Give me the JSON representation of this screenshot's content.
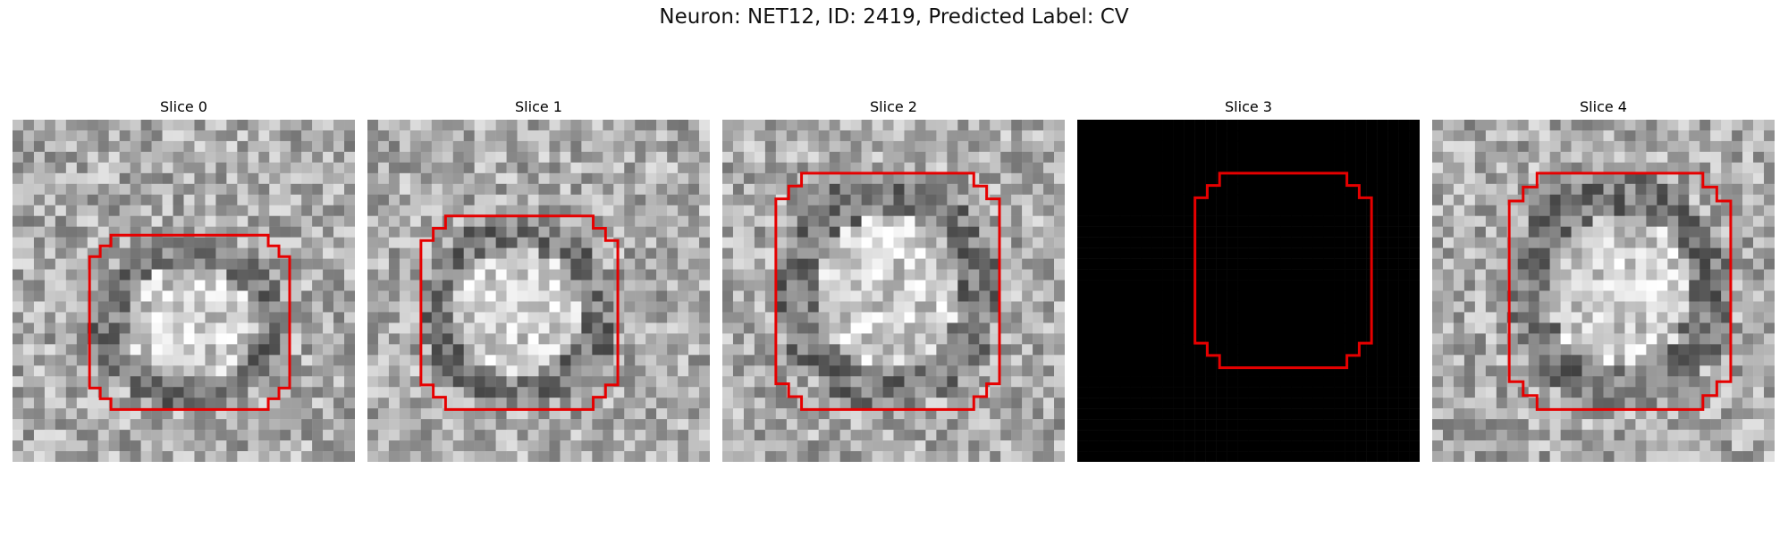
{
  "figure": {
    "title": "Neuron: NET12, ID: 2419, Predicted Label: CV"
  },
  "panels": [
    {
      "title": "Slice 0",
      "image": "grayscale-microscopy-patch",
      "contour_color": "#e60000",
      "blank": false
    },
    {
      "title": "Slice 1",
      "image": "grayscale-microscopy-patch",
      "contour_color": "#e60000",
      "blank": false
    },
    {
      "title": "Slice 2",
      "image": "grayscale-microscopy-patch",
      "contour_color": "#e60000",
      "blank": false
    },
    {
      "title": "Slice 3",
      "image": "black-empty-patch",
      "contour_color": "#e60000",
      "blank": true
    },
    {
      "title": "Slice 4",
      "image": "grayscale-microscopy-patch",
      "contour_color": "#e60000",
      "blank": false
    }
  ]
}
